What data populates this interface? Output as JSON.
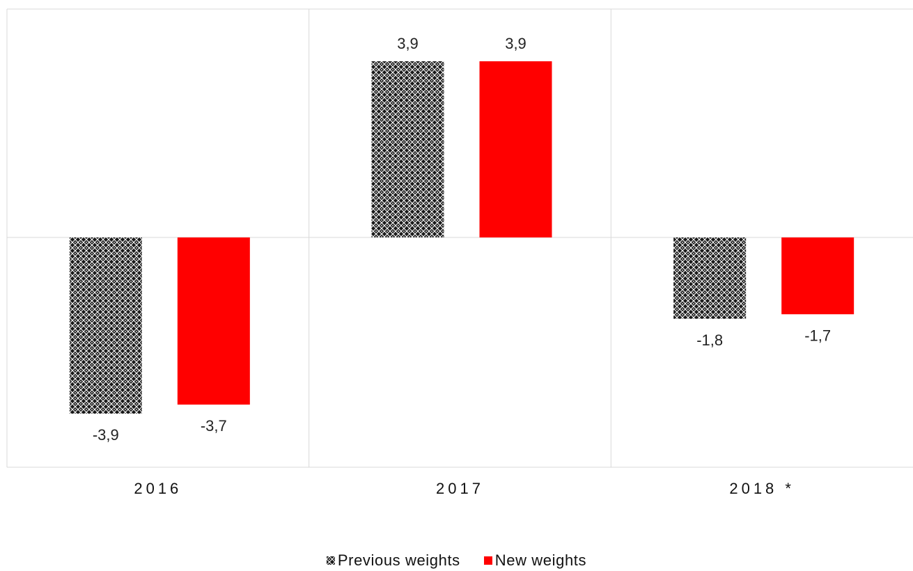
{
  "chart_data": {
    "type": "bar",
    "categories": [
      "2016",
      "2017",
      "2018  *"
    ],
    "series": [
      {
        "name": "Previous weights",
        "values": [
          -3.9,
          3.9,
          -1.8
        ],
        "color": "#222222",
        "pattern": "crosshatch"
      },
      {
        "name": "New weights",
        "values": [
          -3.7,
          3.9,
          -1.7
        ],
        "color": "#ff0000",
        "pattern": "solid"
      }
    ],
    "data_labels": [
      [
        "-3,9",
        "3,9",
        "-1,8"
      ],
      [
        "-3,7",
        "3,9",
        "-1,7"
      ]
    ],
    "title": "",
    "xlabel": "",
    "ylabel": "",
    "ylim": [
      -5,
      5
    ],
    "grid": true,
    "legend_position": "bottom-center"
  },
  "legend": {
    "items": [
      {
        "label": "Previous weights",
        "icon": "crosshatch-swatch-icon"
      },
      {
        "label": "New weights",
        "icon": "red-square-swatch-icon"
      }
    ]
  }
}
